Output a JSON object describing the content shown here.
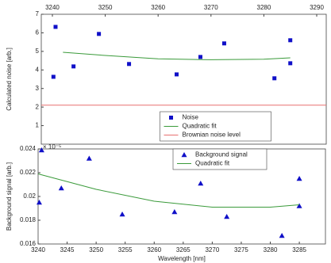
{
  "chart_data": [
    {
      "type": "scatter",
      "ylabel": "Calculated noise [arb.]",
      "annotation": "× 10⁻⁵",
      "xlim": [
        3237.9,
        3291.8
      ],
      "xticks": [
        3240,
        3250,
        3260,
        3270,
        3280,
        3290
      ],
      "ylim": [
        0,
        7
      ],
      "yticks": [
        1,
        2,
        3,
        4,
        5,
        6,
        7
      ],
      "legend": "lower center",
      "series": [
        {
          "name": "Noise",
          "kind": "square",
          "color": "#1010c8",
          "x": [
            3240.2,
            3240.6,
            3244,
            3248.8,
            3254.5,
            3263.5,
            3268,
            3272.5,
            3282,
            3285,
            3285
          ],
          "values": [
            3.63,
            6.32,
            4.19,
            5.94,
            4.32,
            3.76,
            4.7,
            5.43,
            3.55,
            5.6,
            4.36
          ]
        },
        {
          "name": "Quadratic fit",
          "kind": "line",
          "color": "#3a9a3a",
          "x": [
            3242,
            3250,
            3260,
            3270,
            3280,
            3285
          ],
          "values": [
            4.95,
            4.78,
            4.6,
            4.55,
            4.58,
            4.65
          ]
        },
        {
          "name": "Brownian noise level",
          "kind": "line",
          "color": "#e87070",
          "x": [
            3237.9,
            3291.8
          ],
          "values": [
            2.1,
            2.1
          ]
        }
      ]
    },
    {
      "type": "scatter",
      "ylabel": "Background signal [arb.]",
      "xlabel": "Wavelength [nm]",
      "xlim": [
        3240,
        3289.5
      ],
      "xticks": [
        3240,
        3245,
        3250,
        3255,
        3260,
        3265,
        3270,
        3275,
        3280,
        3285
      ],
      "ylim": [
        0.016,
        0.024
      ],
      "yticks": [
        0.016,
        0.018,
        0.02,
        0.022,
        0.024
      ],
      "legend": "upper right",
      "series": [
        {
          "name": "Background signal",
          "kind": "triangle",
          "color": "#1010c8",
          "x": [
            3240.2,
            3240.6,
            3244,
            3248.8,
            3254.5,
            3263.5,
            3268,
            3272.5,
            3282,
            3285,
            3285
          ],
          "values": [
            0.0195,
            0.0239,
            0.0207,
            0.0232,
            0.0185,
            0.0187,
            0.0211,
            0.0183,
            0.0167,
            0.0215,
            0.0192
          ]
        },
        {
          "name": "Quadratic fit",
          "kind": "line",
          "color": "#3a9a3a",
          "x": [
            3240,
            3250,
            3260,
            3270,
            3280,
            3285
          ],
          "values": [
            0.0219,
            0.0206,
            0.0196,
            0.0191,
            0.0191,
            0.0193
          ]
        }
      ]
    }
  ]
}
